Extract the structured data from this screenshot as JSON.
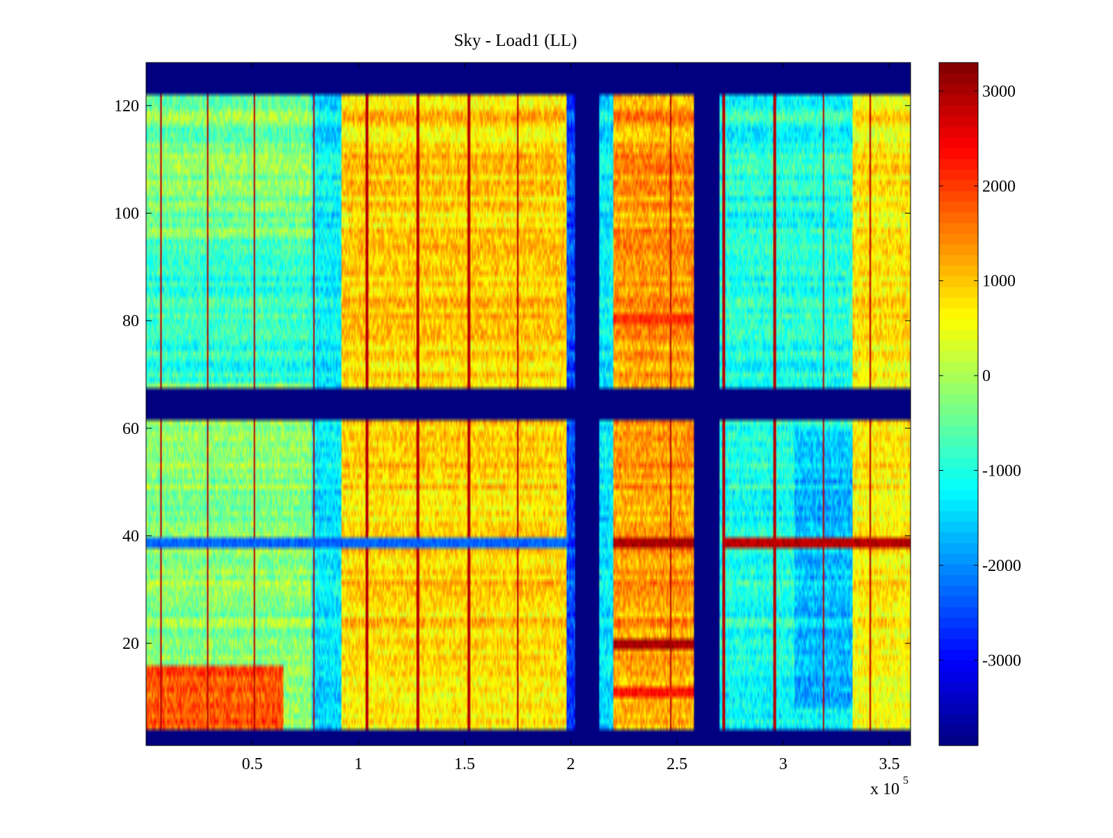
{
  "chart_data": {
    "type": "heatmap",
    "title": "Sky - Load1 (LL)",
    "xlabel": "",
    "ylabel": "",
    "x_multiplier": "x 10",
    "x_multiplier_exponent": "5",
    "xlim": [
      0,
      3.6
    ],
    "ylim": [
      1,
      128
    ],
    "xticks": [
      0.5,
      1,
      1.5,
      2,
      2.5,
      3,
      3.5
    ],
    "xtick_labels": [
      "0.5",
      "1",
      "1.5",
      "2",
      "2.5",
      "3",
      "3.5"
    ],
    "yticks": [
      20,
      40,
      60,
      80,
      100,
      120
    ],
    "ytick_labels": [
      "20",
      "40",
      "60",
      "80",
      "100",
      "120"
    ],
    "colorbar": {
      "range": [
        -3900,
        3300
      ],
      "ticks": [
        -3000,
        -2000,
        -1000,
        0,
        1000,
        2000,
        3000
      ],
      "tick_labels": [
        "-3000",
        "-2000",
        "-1000",
        "0",
        "1000",
        "2000",
        "3000"
      ],
      "colormap": "jet"
    },
    "masked_value": -3900,
    "masked_rows": [
      [
        1,
        4
      ],
      [
        62,
        67
      ],
      [
        122,
        128
      ]
    ],
    "masked_columns": [
      [
        2.02,
        2.13
      ],
      [
        2.58,
        2.7
      ]
    ],
    "column_bands": [
      {
        "x": [
          0,
          0.78
        ],
        "rows": "upper",
        "value": -300
      },
      {
        "x": [
          0,
          0.78
        ],
        "rows": "upper-mid",
        "value": -900
      },
      {
        "x": [
          0,
          0.65
        ],
        "rows": "lower-bottom",
        "value": 2000
      },
      {
        "x": [
          0,
          0.78
        ],
        "rows": "lower",
        "value": -200
      },
      {
        "x": [
          0.78,
          0.92
        ],
        "rows": "all",
        "value": -1300
      },
      {
        "x": [
          0.92,
          1.98
        ],
        "rows": "all",
        "value": 900
      },
      {
        "x": [
          1.98,
          2.02
        ],
        "rows": "all",
        "value": -2500
      },
      {
        "x": [
          2.13,
          2.2
        ],
        "rows": "all",
        "value": -1300
      },
      {
        "x": [
          2.2,
          2.58
        ],
        "rows": "all",
        "value": 1300
      },
      {
        "x": [
          2.7,
          3.33
        ],
        "rows": "all",
        "value": -1000
      },
      {
        "x": [
          3.33,
          3.6
        ],
        "rows": "all",
        "value": 700
      }
    ],
    "vertical_stripes_x": [
      0.07,
      0.29,
      0.51,
      0.79,
      1.04,
      1.28,
      1.52,
      1.75,
      2.47,
      2.72,
      2.96,
      3.19,
      3.41
    ],
    "row_features": [
      {
        "y": 39,
        "value": 3000,
        "x": [
          2.2,
          2.58
        ]
      },
      {
        "y": 39,
        "value": 2900,
        "x": [
          2.73,
          3.6
        ]
      },
      {
        "y": 39,
        "value": -2300,
        "x": [
          0,
          1.98
        ]
      },
      {
        "y": 20,
        "value": 3000,
        "x": [
          2.2,
          2.58
        ]
      },
      {
        "y": 11,
        "value": 2300,
        "x": [
          2.2,
          2.58
        ]
      },
      {
        "y": 80,
        "value": 2100,
        "x": [
          2.2,
          2.58
        ]
      }
    ]
  }
}
